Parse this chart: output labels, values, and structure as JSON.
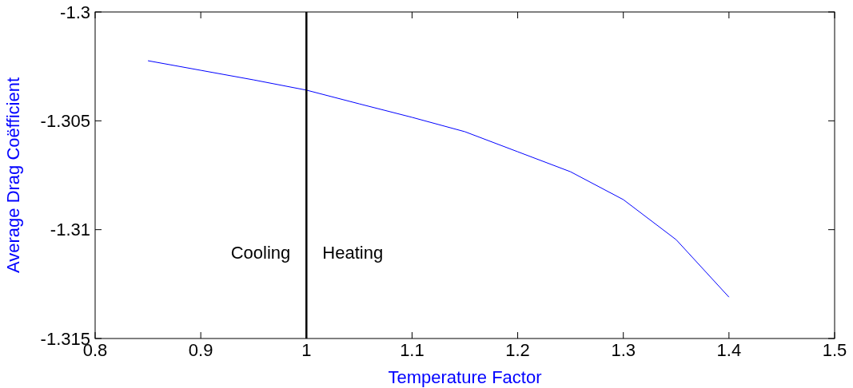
{
  "chart_data": {
    "type": "line",
    "xlabel": "Temperature Factor",
    "ylabel": "Average Drag Coëfficient",
    "x": [
      0.85,
      0.9,
      0.95,
      1.0,
      1.05,
      1.1,
      1.15,
      1.2,
      1.25,
      1.3,
      1.35,
      1.4
    ],
    "series": [
      {
        "color": "#0000ff",
        "values": [
          -1.30224,
          -1.30268,
          -1.30312,
          -1.30359,
          -1.30422,
          -1.30484,
          -1.3055,
          -1.30642,
          -1.30734,
          -1.30862,
          -1.31046,
          -1.3131
        ]
      }
    ],
    "xlim": [
      0.8,
      1.5
    ],
    "xticks": [
      0.8,
      0.9,
      1,
      1.1,
      1.2,
      1.3,
      1.4,
      1.5
    ],
    "ylim": [
      -1.315,
      -1.3
    ],
    "yticks": [
      -1.315,
      -1.31,
      -1.305,
      -1.3
    ],
    "ref_lines": [
      {
        "axis": "x",
        "value": 1,
        "color": "#000000"
      }
    ],
    "annotations": [
      "Cooling",
      "Heating"
    ],
    "grid": false
  }
}
